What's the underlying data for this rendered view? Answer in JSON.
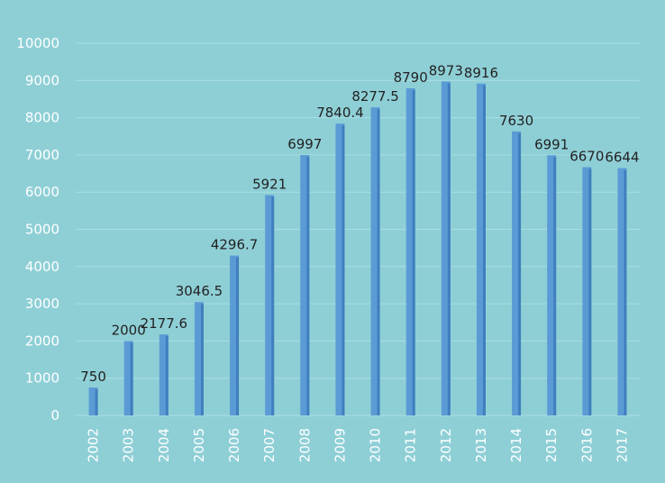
{
  "chart_data": {
    "type": "bar",
    "categories": [
      "2002",
      "2003",
      "2004",
      "2005",
      "2006",
      "2007",
      "2008",
      "2009",
      "2010",
      "2011",
      "2012",
      "2013",
      "2014",
      "2015",
      "2016",
      "2017"
    ],
    "values": [
      750,
      2000,
      2177.6,
      3046.5,
      4296.7,
      5921,
      6997,
      7840.4,
      8277.5,
      8790,
      8973,
      8916,
      7630,
      6991,
      6670,
      6644
    ],
    "data_labels": [
      "750",
      "2000",
      "2177.6",
      "3046.5",
      "4296.7",
      "5921",
      "6997",
      "7840.4",
      "8277.5",
      "8790",
      "8973",
      "8916",
      "7630",
      "6991",
      "6670",
      "6644"
    ],
    "yticks": [
      "0",
      "1000",
      "2000",
      "3000",
      "4000",
      "5000",
      "6000",
      "7000",
      "8000",
      "9000",
      "10000"
    ],
    "ylim": [
      0,
      10000
    ],
    "grid": true,
    "colors": {
      "bar": "#5b9bd5",
      "bar_shade": "#3f7fbf",
      "background": "#8ecfd6"
    }
  }
}
